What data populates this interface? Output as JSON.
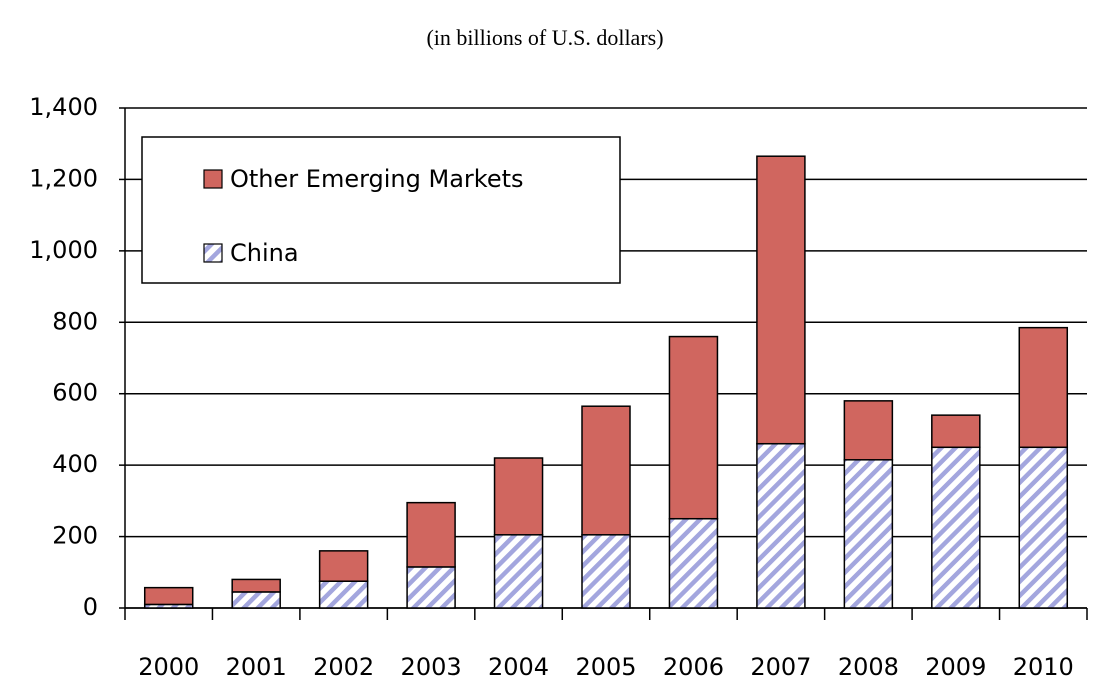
{
  "chart_data": {
    "type": "stacked_bar",
    "subtitle": "(in billions of U.S. dollars)",
    "categories": [
      "2000",
      "2001",
      "2002",
      "2003",
      "2004",
      "2005",
      "2006",
      "2007",
      "2008",
      "2009",
      "2010"
    ],
    "series": [
      {
        "name": "Other Emerging Markets",
        "color": "#d0665f",
        "values": [
          47,
          35,
          85,
          180,
          215,
          360,
          510,
          805,
          165,
          90,
          335
        ]
      },
      {
        "name": "China",
        "color": "#a3a6de",
        "pattern": "hatch",
        "values": [
          10,
          45,
          75,
          115,
          205,
          205,
          250,
          460,
          415,
          450,
          450
        ]
      }
    ],
    "ylim": [
      0,
      1400
    ],
    "yticks": [
      0,
      200,
      400,
      600,
      800,
      {
        "value": 1000,
        "label": "1,000"
      },
      {
        "value": 1200,
        "label": "1,200"
      },
      {
        "value": 1400,
        "label": "1,400"
      }
    ],
    "grid": true,
    "legend": "upper left"
  }
}
